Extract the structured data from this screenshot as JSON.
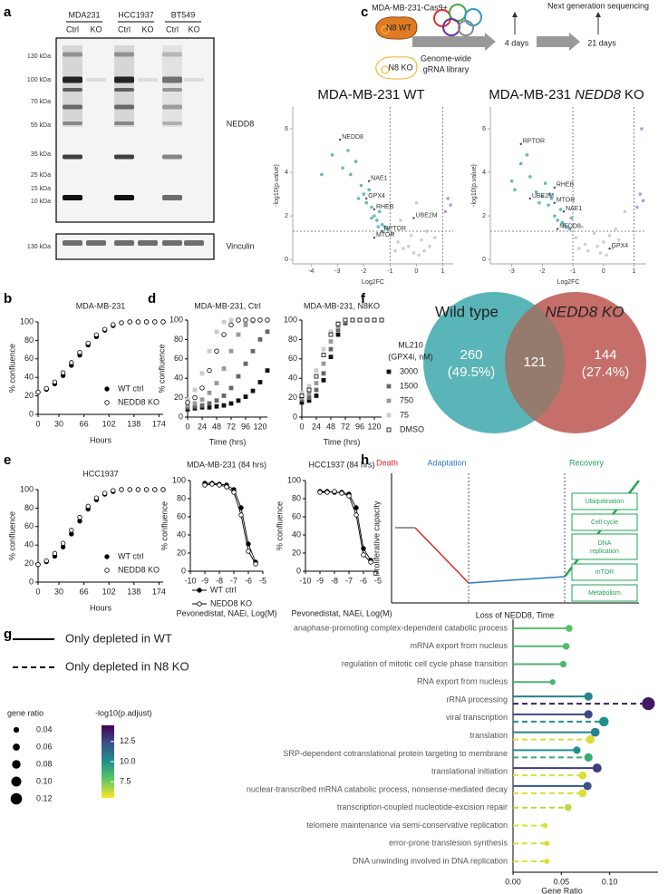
{
  "panel_labels": [
    "a",
    "b",
    "c",
    "d",
    "e",
    "f",
    "g",
    "h"
  ],
  "blot": {
    "cell_lines": [
      "MDA231",
      "HCC1937",
      "BT549"
    ],
    "lanes": [
      "Ctrl",
      "KO",
      "Ctrl",
      "KO",
      "Ctrl",
      "KO"
    ],
    "markers": [
      "130 kDa",
      "100 kDa",
      "70 kDa",
      "55 kDa",
      "35 kDa",
      "25 kDa",
      "15 kDa",
      "10 kDa"
    ],
    "target": "NEDD8",
    "loading_marker": "130 kDa",
    "loading_control": "Vinculin"
  },
  "screen": {
    "cell_line": "MDA-MB-231-Cas9+",
    "wt": "N8 WT",
    "ko": "N8 KO",
    "library": [
      "Genome-wide",
      "gRNA library"
    ],
    "readout": "Next generation sequencing",
    "timepoints": [
      "4 days",
      "21 days"
    ]
  },
  "venn": {
    "left": {
      "title": "Wild type",
      "count": 260,
      "percent": "(49.5%)"
    },
    "right": {
      "title": "NEDD8 KO",
      "count": 144,
      "percent": "(27.4%)"
    },
    "overlap": 121
  },
  "model": {
    "phases": [
      "Death",
      "Adaptation",
      "Recovery"
    ],
    "y_label": "Proliferative capacity",
    "x_label": "Loss of NEDD8, Time",
    "pathways": [
      "Ubiquitination",
      "Cell cycle",
      "DNA replication",
      "mTOR",
      "Metabolism"
    ]
  },
  "chart_data": [
    {
      "type": "scatter",
      "title": "MDA-MB-231",
      "x_label": "Hours",
      "y_label": "% confluence",
      "x": [
        0,
        12,
        24,
        36,
        48,
        60,
        72,
        84,
        96,
        108,
        120,
        132,
        144,
        156,
        168,
        180
      ],
      "series": [
        {
          "name": "WT ctrl",
          "color": "#000000",
          "marker": "circle",
          "values": [
            24,
            27,
            33,
            42,
            53,
            64,
            75,
            84,
            91,
            96,
            99,
            100,
            100,
            100,
            100,
            100
          ]
        },
        {
          "name": "NEDD8 KO",
          "color": "#000000",
          "marker": "open-circle",
          "values": [
            24,
            28,
            35,
            45,
            56,
            67,
            77,
            86,
            92,
            97,
            99,
            100,
            100,
            100,
            100,
            100
          ]
        }
      ],
      "xlim": [
        0,
        180
      ],
      "ylim": [
        0,
        100
      ],
      "xticks": [
        0,
        30,
        66,
        102,
        138,
        174
      ],
      "yticks": [
        0,
        20,
        40,
        60,
        80,
        100
      ],
      "legend": "lower right"
    },
    {
      "type": "scatter",
      "title": "HCC1937",
      "x_label": "Hours",
      "y_label": "% confluence",
      "x": [
        0,
        12,
        24,
        36,
        48,
        60,
        72,
        84,
        96,
        108,
        120,
        132,
        144,
        156,
        168,
        180
      ],
      "series": [
        {
          "name": "WT ctrl",
          "color": "#000000",
          "marker": "circle",
          "values": [
            19,
            22,
            28,
            38,
            52,
            66,
            79,
            89,
            95,
            98,
            100,
            100,
            100,
            100,
            100,
            100
          ]
        },
        {
          "name": "NEDD8 KO",
          "color": "#000000",
          "marker": "open-circle",
          "values": [
            19,
            23,
            31,
            42,
            56,
            70,
            82,
            91,
            96,
            99,
            100,
            100,
            100,
            100,
            100,
            100
          ]
        }
      ],
      "xlim": [
        0,
        180
      ],
      "ylim": [
        0,
        100
      ],
      "xticks": [
        0,
        30,
        66,
        102,
        138,
        174
      ],
      "yticks": [
        0,
        20,
        40,
        60,
        80,
        100
      ],
      "legend": "lower right"
    },
    {
      "type": "volcano",
      "title_parts": [
        "MDA-MB-231",
        "WT"
      ],
      "x_label": "Log2FC",
      "y_label": "-log10(p.value)",
      "series": [
        {
          "color": "#2a9a9c",
          "x": [
            -3.6,
            -3.2,
            -2.8,
            -2.6,
            -2.5,
            -2.3,
            -2.2,
            -2.1,
            -2.0,
            -1.9,
            -1.8,
            -1.7,
            -1.7,
            -1.6,
            -1.5,
            -1.45,
            -1.4,
            -1.3,
            -1.2,
            -1.1
          ],
          "values": [
            3.9,
            4.8,
            4.2,
            5.0,
            3.9,
            4.5,
            2.8,
            3.4,
            3.0,
            2.6,
            3.2,
            2.4,
            1.9,
            2.0,
            1.8,
            1.5,
            2.2,
            1.6,
            1.5,
            1.4
          ]
        },
        {
          "color": "#bbbbbb",
          "x": [
            -0.9,
            -0.8,
            -0.7,
            -0.6,
            -0.5,
            -0.3,
            -0.2,
            -0.1,
            0.0,
            0.1,
            0.2,
            0.3,
            0.4,
            0.5,
            0.7
          ],
          "values": [
            1.2,
            0.4,
            0.8,
            1.8,
            0.5,
            0.6,
            1.1,
            0.3,
            2.6,
            0.2,
            0.9,
            0.4,
            1.3,
            0.6,
            1.0
          ]
        },
        {
          "color": "#9b6cd0",
          "x": [
            1.1,
            1.2,
            1.3
          ],
          "values": [
            2.2,
            2.8,
            2.5
          ]
        }
      ],
      "annotations": [
        {
          "label": "NEDD8",
          "x": -2.9,
          "y": 5.5
        },
        {
          "label": "NAE1",
          "x": -1.8,
          "y": 3.6
        },
        {
          "label": "GPX4",
          "x": -1.9,
          "y": 2.8
        },
        {
          "label": "RHEB",
          "x": -1.6,
          "y": 2.3
        },
        {
          "label": "UBE2M",
          "x": -0.1,
          "y": 1.9
        },
        {
          "label": "RPTOR",
          "x": -1.3,
          "y": 1.3
        },
        {
          "label": "MTOR",
          "x": -1.6,
          "y": 1.0
        }
      ],
      "vlines": [
        -1,
        1
      ],
      "hline": 1.3,
      "xlim": [
        -4.7,
        1.4
      ],
      "ylim": [
        -0.2,
        7
      ],
      "xticks": [
        -4,
        -3,
        -2,
        -1,
        0,
        1
      ],
      "yticks": [
        0,
        2,
        4,
        6
      ]
    },
    {
      "type": "volcano",
      "title_parts": [
        "MDA-MB-231",
        "NEDD8",
        "KO"
      ],
      "italic_part": 1,
      "x_label": "Log2FC",
      "y_label": "-log10(p.value)",
      "series": [
        {
          "color": "#2a9a9c",
          "x": [
            -3.0,
            -2.9,
            -2.7,
            -2.5,
            -2.4,
            -2.2,
            -2.1,
            -2.0,
            -1.9,
            -1.8,
            -1.75,
            -1.7,
            -1.6,
            -1.5,
            -1.4,
            -1.35,
            -1.3,
            -1.2,
            -1.1,
            -1.05
          ],
          "values": [
            3.6,
            3.2,
            4.4,
            4.8,
            3.8,
            3.1,
            2.6,
            2.9,
            3.5,
            2.5,
            3.0,
            2.8,
            2.0,
            1.8,
            2.3,
            1.7,
            1.6,
            1.5,
            1.4,
            1.9
          ]
        },
        {
          "color": "#bbbbbb",
          "x": [
            -0.9,
            -0.8,
            -0.7,
            -0.6,
            -0.5,
            -0.3,
            -0.2,
            -0.1,
            0.0,
            0.1,
            0.2,
            0.3,
            0.4,
            0.5,
            0.7
          ],
          "values": [
            1.0,
            0.5,
            1.5,
            0.7,
            0.4,
            1.2,
            0.6,
            0.3,
            0.8,
            0.2,
            1.1,
            0.5,
            1.4,
            0.9,
            2.2
          ]
        },
        {
          "color": "#9b6cd0",
          "x": [
            1.1,
            1.2,
            1.25,
            1.3
          ],
          "values": [
            2.4,
            3.0,
            6.0,
            2.7
          ]
        }
      ],
      "annotations": [
        {
          "label": "RPTOR",
          "x": -2.7,
          "y": 5.3
        },
        {
          "label": "RHEB",
          "x": -1.6,
          "y": 3.3
        },
        {
          "label": "UBE2M",
          "x": -2.4,
          "y": 2.8
        },
        {
          "label": "MTOR",
          "x": -1.6,
          "y": 2.6
        },
        {
          "label": "NAE1",
          "x": -1.3,
          "y": 2.2
        },
        {
          "label": "NEDD8",
          "x": -1.5,
          "y": 1.4
        },
        {
          "label": "GPX4",
          "x": 0.2,
          "y": 0.5
        }
      ],
      "vlines": [
        -1,
        1
      ],
      "hline": 1.3,
      "xlim": [
        -3.7,
        1.4
      ],
      "ylim": [
        -0.2,
        7
      ],
      "xticks": [
        -3,
        -2,
        -1,
        0,
        1
      ],
      "yticks": [
        0,
        2,
        4,
        6
      ]
    },
    {
      "type": "scatter",
      "title": "MDA-MB-231, Ctrl",
      "x_label": "Time (hrs)",
      "y_label": "% confluence",
      "x": [
        0,
        12,
        24,
        36,
        48,
        60,
        72,
        84,
        96,
        108,
        120,
        132
      ],
      "series": [
        {
          "color": "#111111",
          "marker": "square",
          "values": [
            8,
            9,
            10,
            10,
            11,
            12,
            14,
            17,
            21,
            27,
            36,
            48
          ]
        },
        {
          "color": "#666666",
          "marker": "square",
          "values": [
            10,
            11,
            12,
            14,
            17,
            22,
            30,
            42,
            55,
            68,
            80,
            88
          ]
        },
        {
          "color": "#999999",
          "marker": "square",
          "values": [
            12,
            14,
            18,
            25,
            35,
            50,
            68,
            85,
            95,
            99,
            100,
            100
          ]
        },
        {
          "color": "#cccccc",
          "marker": "square",
          "values": [
            18,
            28,
            45,
            68,
            88,
            98,
            100,
            100,
            100,
            100,
            100,
            100
          ]
        },
        {
          "color": "#000000",
          "marker": "open-circle",
          "values": [
            15,
            20,
            30,
            48,
            68,
            85,
            95,
            100,
            100,
            100,
            100,
            100
          ]
        }
      ],
      "xlim": [
        0,
        132
      ],
      "ylim": [
        0,
        100
      ],
      "xticks": [
        0,
        24,
        48,
        72,
        96,
        120
      ],
      "yticks": [
        0,
        20,
        40,
        60,
        80,
        100
      ]
    },
    {
      "type": "scatter",
      "title": "MDA-MB-231, N8KO",
      "x_label": "Time (hrs)",
      "x": [
        0,
        12,
        24,
        36,
        48,
        60,
        72,
        84,
        96,
        108,
        120,
        132
      ],
      "series": [
        {
          "name": "3000",
          "color": "#111111",
          "marker": "square",
          "values": [
            15,
            17,
            22,
            38,
            62,
            85,
            97,
            100,
            100,
            100,
            100,
            100
          ]
        },
        {
          "name": "1500",
          "color": "#666666",
          "marker": "square",
          "values": [
            18,
            20,
            28,
            45,
            70,
            90,
            98,
            100,
            100,
            100,
            100,
            100
          ]
        },
        {
          "name": "750",
          "color": "#999999",
          "marker": "square",
          "values": [
            20,
            24,
            35,
            55,
            78,
            93,
            99,
            100,
            100,
            100,
            100,
            100
          ]
        },
        {
          "name": "75",
          "color": "#cccccc",
          "marker": "square",
          "values": [
            25,
            32,
            48,
            70,
            88,
            97,
            100,
            100,
            100,
            100,
            100,
            100
          ]
        },
        {
          "name": "DMSO",
          "color": "#000000",
          "marker": "open-square",
          "values": [
            22,
            28,
            42,
            64,
            85,
            96,
            100,
            100,
            100,
            100,
            100,
            100
          ]
        }
      ],
      "legend_title": [
        "ML210",
        "(GPX4i, nM)"
      ],
      "legend": "right",
      "xlim": [
        0,
        132
      ],
      "ylim": [
        0,
        100
      ],
      "xticks": [
        0,
        24,
        48,
        72,
        96,
        120
      ],
      "yticks": [
        0,
        20,
        40,
        60,
        80,
        100
      ]
    },
    {
      "type": "line",
      "title": "MDA-MB-231 (84 hrs)",
      "x_label": "Pevonedistat, NAEi, Log(M)",
      "y_label": "% confluence",
      "x": [
        -9,
        -8.5,
        -8,
        -7.5,
        -7,
        -6.5,
        -6,
        -5.5
      ],
      "series": [
        {
          "name": "WT ctrl",
          "color": "#000000",
          "marker": "circle",
          "values": [
            97,
            97,
            96,
            95,
            90,
            70,
            30,
            10
          ]
        },
        {
          "name": "NEDD8 KO",
          "color": "#000000",
          "marker": "open-circle",
          "values": [
            95,
            96,
            95,
            93,
            87,
            62,
            22,
            8
          ]
        }
      ],
      "xlim": [
        -10,
        -5
      ],
      "ylim": [
        0,
        100
      ],
      "xticks": [
        -10,
        -9,
        -8,
        -7,
        -6,
        -5
      ],
      "yticks": [
        0,
        20,
        40,
        60,
        80,
        100
      ],
      "legend": "bottom"
    },
    {
      "type": "line",
      "title": "HCC1937 (84 hrs)",
      "x_label": "Pevonedistat, NAEi, Log(M)",
      "y_label": "% confluence",
      "x": [
        -9,
        -8.5,
        -8,
        -7.5,
        -7,
        -6.5,
        -6,
        -5.5
      ],
      "series": [
        {
          "color": "#000000",
          "marker": "circle",
          "values": [
            88,
            88,
            87,
            87,
            85,
            70,
            25,
            12
          ]
        },
        {
          "color": "#000000",
          "marker": "open-circle",
          "values": [
            87,
            87,
            88,
            86,
            83,
            62,
            18,
            10
          ]
        }
      ],
      "xlim": [
        -10,
        -5
      ],
      "ylim": [
        0,
        100
      ],
      "xticks": [
        -10,
        -9,
        -8,
        -7,
        -6,
        -5
      ],
      "yticks": [
        0,
        20,
        40,
        60,
        80,
        100
      ]
    },
    {
      "type": "lollipop",
      "x_label": "Gene Ratio",
      "categories": [
        "anaphase-promoting complex-dependent catabolic process",
        "mRNA export from nucleus",
        "regulation of mitotic cell cycle phase transition",
        "RNA export from nucleus",
        "rRNA processing",
        "viral transcription",
        "translation",
        "SRP-dependent cotranslational protein targeting to membrane",
        "translational initiation",
        "nuclear-transcribed mRNA catabolic process, nonsense-mediated decay",
        "transcription-coupled nucleotide-excision repair",
        "telomere maintenance via semi-conservative replication",
        "error-prone translesion synthesis",
        "DNA unwinding involved in DNA replication"
      ],
      "series": [
        {
          "name": "Only depleted in WT",
          "style": "solid",
          "values": [
            0.058,
            0.055,
            0.052,
            0.041,
            0.078,
            0.078,
            0.085,
            0.066,
            0.087,
            0.077,
            null,
            null,
            null,
            null
          ],
          "color_values": [
            8.0,
            8.3,
            8.5,
            8.6,
            10.5,
            12.5,
            10.5,
            10.0,
            12.8,
            12.2,
            null,
            null,
            null,
            null
          ]
        },
        {
          "name": "Only depleted in N8 KO",
          "style": "dashed",
          "values": [
            null,
            null,
            null,
            null,
            0.14,
            0.094,
            0.08,
            0.078,
            0.072,
            0.072,
            0.057,
            0.033,
            0.035,
            0.035
          ],
          "color_values": [
            null,
            null,
            null,
            null,
            13.8,
            10.0,
            6.0,
            9.0,
            6.0,
            6.0,
            6.5,
            6.0,
            6.0,
            6.0
          ]
        }
      ],
      "xlim": [
        0,
        0.15
      ],
      "xticks": [
        {
          "value": 0,
          "label": "0.00"
        },
        0.05,
        {
          "value": 0.1,
          "label": "0.10"
        }
      ],
      "size_legend": {
        "title": "gene ratio",
        "values": [
          0.04,
          0.06,
          0.08,
          {
            "value": 0.1,
            "label": "0.10"
          },
          0.12
        ]
      },
      "colorbar": {
        "title": "-log10(p.adjust)",
        "range": [
          5.5,
          14.5
        ],
        "ticks": [
          7.5,
          {
            "value": 10,
            "label": "10.0"
          },
          12.5
        ],
        "colormap": [
          "#fde725",
          "#5ec962",
          "#21918c",
          "#3b528b",
          "#440154"
        ]
      }
    }
  ]
}
